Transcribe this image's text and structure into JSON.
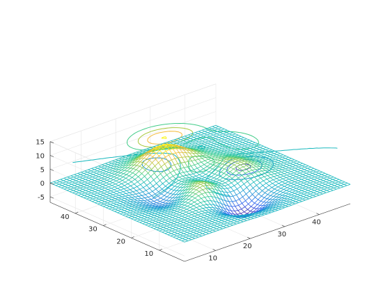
{
  "chart_data": {
    "type": "surface",
    "title": "",
    "xlabel": "",
    "ylabel": "",
    "zlabel": "",
    "function": "3*(1-x)^2*exp(-x^2-(y+1)^2) - 10*(x/5 - x^3 - y^5)*exp(-x^2-y^2) - 1/3*exp(-(x+1)^2-y^2)",
    "grid_size": 49,
    "xlim": [
      1,
      49
    ],
    "ylim": [
      1,
      49
    ],
    "zlim": [
      -7,
      15
    ],
    "x_ticks": [
      "10",
      "20",
      "30",
      "40"
    ],
    "y_ticks": [
      "10",
      "20",
      "30",
      "40"
    ],
    "z_ticks": [
      "-5",
      "0",
      "5",
      "10",
      "15"
    ],
    "z_range": [
      -6.55,
      8.1
    ],
    "contour_plane_z": 11,
    "contour_levels": [
      -6,
      -4,
      -2,
      0,
      2,
      4,
      6,
      8
    ],
    "colormap": [
      "#3e26a8",
      "#2e60f2",
      "#1f8fd8",
      "#13b5c4",
      "#38cc8f",
      "#a4c93b",
      "#f4bb3a",
      "#f9f90e"
    ],
    "mesh_color_mode": "height"
  }
}
